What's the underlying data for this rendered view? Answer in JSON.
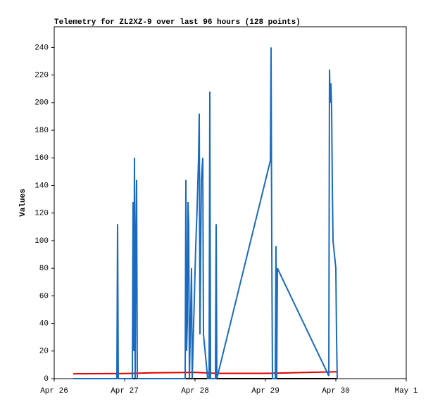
{
  "chart_data": {
    "type": "line",
    "title": "Telemetry for ZL2XZ-9 over last 96 hours (128 points)",
    "y_label": "Values",
    "xlim": [
      0,
      5
    ],
    "xticks": [
      {
        "value": 0,
        "label": "Apr 26"
      },
      {
        "value": 1,
        "label": "Apr 27"
      },
      {
        "value": 2,
        "label": "Apr 28"
      },
      {
        "value": 3,
        "label": "Apr 29"
      },
      {
        "value": 4,
        "label": "Apr 30"
      },
      {
        "value": 5,
        "label": "May 1"
      }
    ],
    "ylim": [
      0,
      255
    ],
    "yticks": [
      0,
      20,
      40,
      60,
      80,
      100,
      120,
      140,
      160,
      180,
      200,
      220,
      240
    ],
    "series": [
      {
        "color": "#000000",
        "x": [
          0.27,
          4.02
        ],
        "values": [
          0,
          0
        ]
      },
      {
        "color": "#e00000",
        "x": [
          0.27,
          1.0,
          1.4,
          2.0,
          2.3,
          3.0,
          3.4,
          4.02
        ],
        "values": [
          3.5,
          3.7,
          4.2,
          4.5,
          3.8,
          3.8,
          4.3,
          5
        ]
      },
      {
        "color": "#1a6bbf",
        "x": [
          0.27,
          0.89,
          0.9,
          0.91,
          1.11,
          1.12,
          1.13,
          1.14,
          1.15,
          1.16,
          1.17,
          1.18,
          1.86,
          1.87,
          1.88,
          1.89,
          1.9,
          1.91,
          1.92,
          1.95,
          1.96,
          2.01,
          2.03,
          2.05,
          2.06,
          2.07,
          2.09,
          2.11,
          2.12,
          2.18,
          2.2,
          2.21,
          2.22,
          2.29,
          2.3,
          2.31,
          3.07,
          3.08,
          3.09,
          3.1,
          3.14,
          3.15,
          3.16,
          3.17,
          3.9,
          3.91,
          3.92,
          3.93,
          3.94,
          3.95,
          3.96,
          4.0,
          4.01,
          4.02
        ],
        "values": [
          0,
          0,
          112,
          0,
          0,
          128,
          20,
          160,
          0,
          96,
          144,
          0,
          0,
          144,
          20,
          40,
          128,
          112,
          0,
          80,
          0,
          96,
          124,
          160,
          192,
          32,
          144,
          160,
          32,
          0,
          0,
          208,
          0,
          0,
          112,
          0,
          158,
          240,
          96,
          0,
          0,
          96,
          0,
          80,
          2,
          224,
          200,
          214,
          196,
          140,
          100,
          80,
          30,
          0
        ]
      }
    ]
  }
}
